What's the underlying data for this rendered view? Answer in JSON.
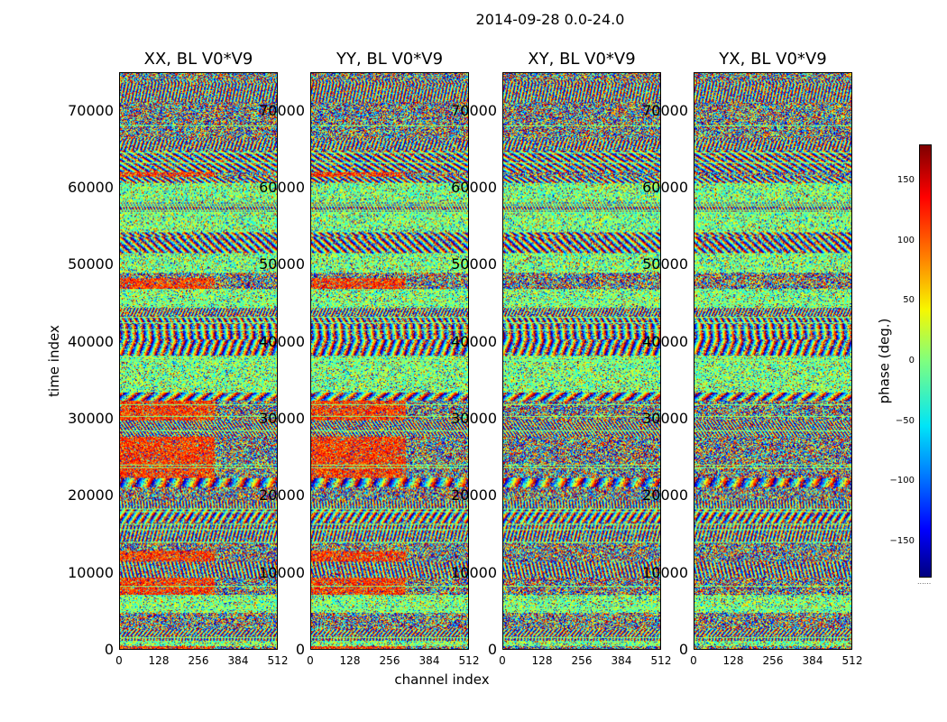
{
  "chart_data": {
    "type": "heatmap",
    "title": "2014-09-28 0.0-24.0",
    "xlabel": "channel index",
    "ylabel": "time index",
    "xlim": [
      0,
      512
    ],
    "ylim": [
      0,
      75000
    ],
    "x_ticks": [
      "0",
      "128",
      "256",
      "384",
      "512"
    ],
    "y_ticks": [
      "0",
      "10000",
      "20000",
      "30000",
      "40000",
      "50000",
      "60000",
      "70000"
    ],
    "panels": [
      {
        "title": "XX, BL V0*V9"
      },
      {
        "title": "YY, BL V0*V9"
      },
      {
        "title": "XY, BL V0*V9"
      },
      {
        "title": "YX, BL V0*V9"
      }
    ],
    "colorbar": {
      "label": "phase (deg.)",
      "range": [
        -180,
        180
      ],
      "ticks": [
        "150",
        "100",
        "50",
        "0",
        "−50",
        "−100",
        "−150"
      ],
      "colormap": "jet"
    }
  }
}
